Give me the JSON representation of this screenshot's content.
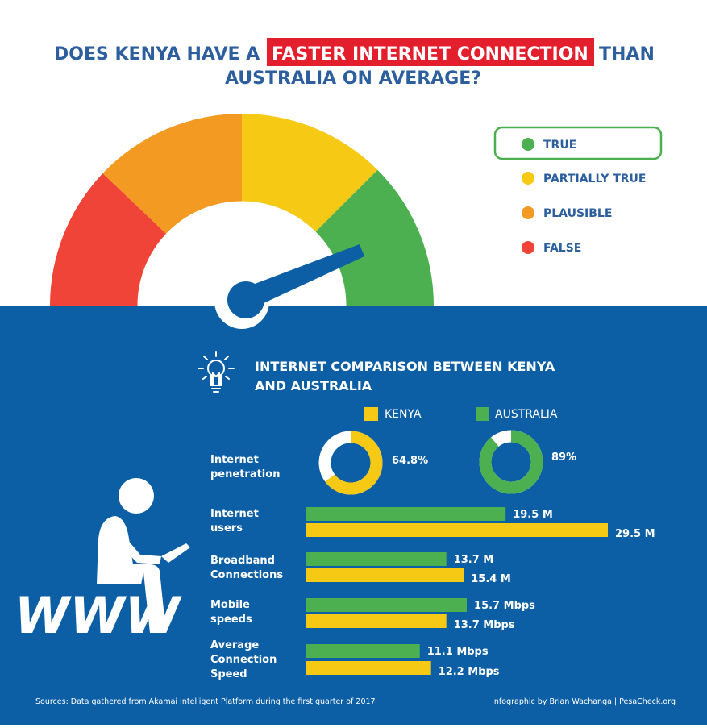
{
  "title": {
    "prefix": "DOES KENYA HAVE A",
    "highlight": "FASTER INTERNET CONNECTION",
    "suffix": "THAN",
    "line2": "AUSTRALIA ON AVERAGE?"
  },
  "verdict": {
    "items": [
      {
        "label": "TRUE",
        "color": "#4caf50"
      },
      {
        "label": "PARTIALLY TRUE",
        "color": "#f6c915"
      },
      {
        "label": "PLAUSIBLE",
        "color": "#f29a22"
      },
      {
        "label": "FALSE",
        "color": "#ef4437"
      }
    ],
    "selected": "TRUE"
  },
  "section": {
    "title_line1": "INTERNET COMPARISON BETWEEN KENYA",
    "title_line2": "AND AUSTRALIA",
    "icon": "lightbulb-icon"
  },
  "illustration": {
    "icon": "person-at-laptop-icon",
    "text": "WWW"
  },
  "colors": {
    "background": "#ffffff",
    "panel": "#0c5fa5",
    "kenya": "#f6c915",
    "australia": "#4caf50",
    "needle": "#0c5fa5",
    "highlight": "#e31e2d",
    "title": "#2d5f9e"
  },
  "chart_data": {
    "type": "bar",
    "series": [
      {
        "name": "KENYA",
        "color": "#f6c915"
      },
      {
        "name": "AUSTRALIA",
        "color": "#4caf50"
      }
    ],
    "penetration": {
      "label_line1": "Internet",
      "label_line2": "penetration",
      "kenya": {
        "value": 64.8,
        "label": "64.8%"
      },
      "australia": {
        "value": 89,
        "label": "89%"
      }
    },
    "bars": [
      {
        "label_lines": [
          "Internet",
          "users"
        ],
        "australia": {
          "value": 19.5,
          "label": "19.5 M"
        },
        "kenya": {
          "value": 29.5,
          "label": "29.5 M"
        }
      },
      {
        "label_lines": [
          "Broadband",
          "Connections"
        ],
        "australia": {
          "value": 13.7,
          "label": "13.7 M"
        },
        "kenya": {
          "value": 15.4,
          "label": "15.4 M"
        }
      },
      {
        "label_lines": [
          "Mobile",
          "speeds"
        ],
        "australia": {
          "value": 15.7,
          "label": "15.7 Mbps"
        },
        "kenya": {
          "value": 13.7,
          "label": "13.7 Mbps"
        }
      },
      {
        "label_lines": [
          "Average",
          "Connection",
          "Speed"
        ],
        "australia": {
          "value": 11.1,
          "label": "11.1 Mbps"
        },
        "kenya": {
          "value": 12.2,
          "label": "12.2 Mbps"
        }
      }
    ]
  },
  "footer": {
    "sources": "Sources: Data gathered from Akamai Intelligent Platform during the first quarter of 2017",
    "credit": "Infographic by Brian Wachanga | PesaCheck.org"
  }
}
